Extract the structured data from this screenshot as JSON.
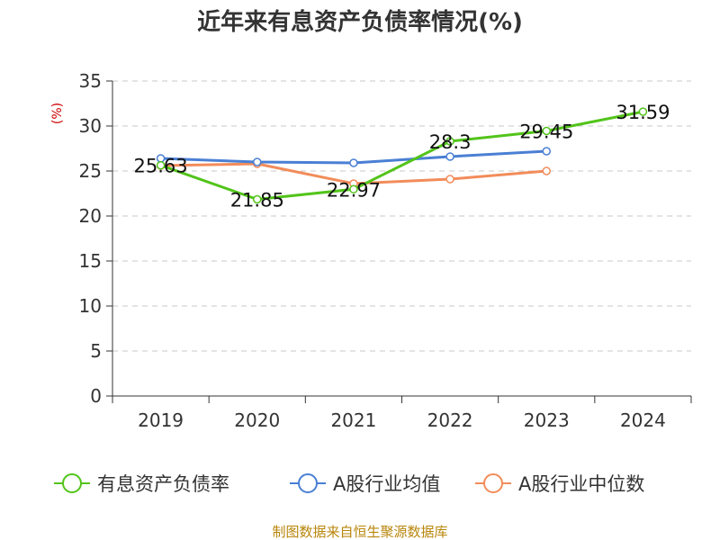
{
  "chart_data": {
    "type": "line",
    "title": "近年来有息资产负债率情况(%)",
    "ylabel": "(%)",
    "xlabel": "",
    "categories": [
      "2019",
      "2020",
      "2021",
      "2022",
      "2023",
      "2024"
    ],
    "ylim": [
      0,
      35
    ],
    "yticks": [
      0,
      5,
      10,
      15,
      20,
      25,
      30,
      35
    ],
    "grid": true,
    "legend_position": "bottom",
    "series": [
      {
        "name": "有息资产负债率",
        "color": "#52c41a",
        "values": [
          25.63,
          21.85,
          22.97,
          28.3,
          29.45,
          31.59
        ],
        "labels": [
          "25.63",
          "21.85",
          "22.97",
          "28.3",
          "29.45",
          "31.59"
        ]
      },
      {
        "name": "A股行业均值",
        "color": "#4a7fd4",
        "values": [
          26.4,
          26.0,
          25.9,
          26.6,
          27.2,
          null
        ]
      },
      {
        "name": "A股行业中位数",
        "color": "#f28c5a",
        "values": [
          25.6,
          25.8,
          23.6,
          24.1,
          25.0,
          null
        ]
      }
    ]
  },
  "source": "制图数据来自恒生聚源数据库"
}
